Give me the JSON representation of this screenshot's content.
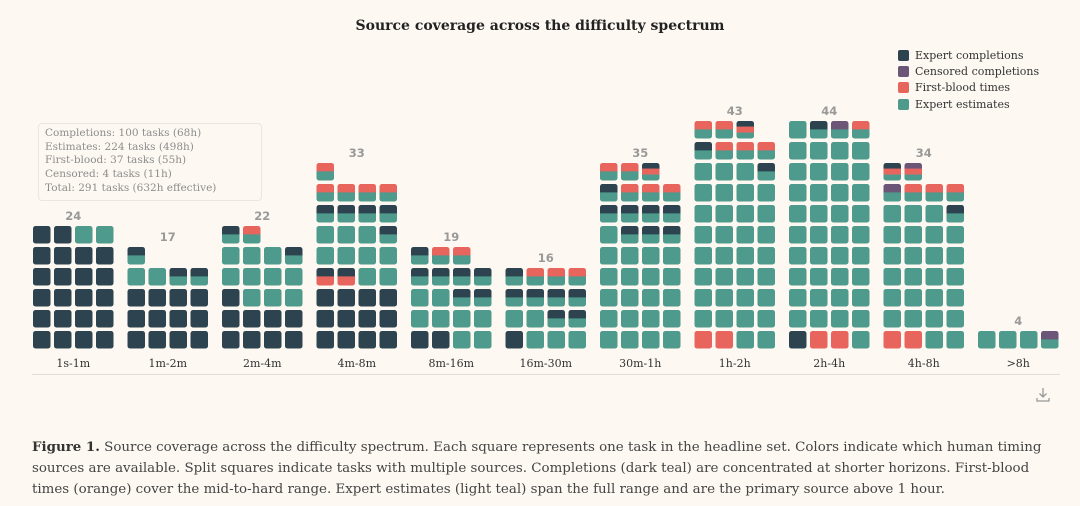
{
  "chart_data": {
    "type": "waffle",
    "title": "Source coverage across the difficulty spectrum",
    "colors": {
      "D": "#2d4450",
      "C": "#6b5677",
      "R": "#e8655e",
      "E": "#4e9a8c"
    },
    "legend": [
      {
        "key": "D",
        "label": "Expert completions"
      },
      {
        "key": "C",
        "label": "Censored completions"
      },
      {
        "key": "R",
        "label": "First-blood times"
      },
      {
        "key": "E",
        "label": "Expert estimates"
      }
    ],
    "bins": [
      {
        "label": "1s-1m",
        "count": 24,
        "rows": [
          [
            "D",
            "D",
            "D",
            "D"
          ],
          [
            "D",
            "D",
            "D",
            "D"
          ],
          [
            "D",
            "D",
            "D",
            "D"
          ],
          [
            "D",
            "D",
            "D",
            "D"
          ],
          [
            "D",
            "D",
            "D",
            "D"
          ],
          [
            "D",
            "D",
            "E",
            "E"
          ]
        ]
      },
      {
        "label": "1m-2m",
        "count": 17,
        "rows": [
          [
            "D",
            "D",
            "D",
            "D"
          ],
          [
            "D",
            "D",
            "D",
            "D"
          ],
          [
            "D",
            "D",
            "D",
            "D"
          ],
          [
            "E",
            "E",
            "DE",
            "DE"
          ],
          [
            "DE"
          ]
        ]
      },
      {
        "label": "2m-4m",
        "count": 22,
        "rows": [
          [
            "D",
            "D",
            "D",
            "D"
          ],
          [
            "D",
            "D",
            "D",
            "D"
          ],
          [
            "D",
            "E",
            "E",
            "E"
          ],
          [
            "E",
            "E",
            "E",
            "E"
          ],
          [
            "E",
            "E",
            "E",
            "DE"
          ],
          [
            "DE",
            "RE"
          ]
        ]
      },
      {
        "label": "4m-8m",
        "count": 33,
        "rows": [
          [
            "D",
            "D",
            "D",
            "D"
          ],
          [
            "D",
            "D",
            "D",
            "D"
          ],
          [
            "D",
            "D",
            "D",
            "D"
          ],
          [
            "DR",
            "DR",
            "E",
            "E"
          ],
          [
            "E",
            "E",
            "E",
            "E"
          ],
          [
            "E",
            "E",
            "E",
            "DE"
          ],
          [
            "DE",
            "DE",
            "DE",
            "DE"
          ],
          [
            "RE",
            "RE",
            "RE",
            "RE"
          ],
          [
            "RE"
          ]
        ]
      },
      {
        "label": "8m-16m",
        "count": 19,
        "rows": [
          [
            "D",
            "D",
            "E",
            "E"
          ],
          [
            "E",
            "E",
            "E",
            "E"
          ],
          [
            "E",
            "E",
            "DE",
            "DE"
          ],
          [
            "DE",
            "DE",
            "DE",
            "DE"
          ],
          [
            "DE",
            "RE",
            "RE"
          ]
        ]
      },
      {
        "label": "16m-30m",
        "count": 16,
        "rows": [
          [
            "D",
            "E",
            "E",
            "E"
          ],
          [
            "E",
            "E",
            "DE",
            "DE"
          ],
          [
            "DE",
            "DE",
            "DE",
            "DE"
          ],
          [
            "DE",
            "RE",
            "RE",
            "RE"
          ]
        ]
      },
      {
        "label": "30m-1h",
        "count": 35,
        "rows": [
          [
            "E",
            "E",
            "E",
            "E"
          ],
          [
            "E",
            "E",
            "E",
            "E"
          ],
          [
            "E",
            "E",
            "E",
            "E"
          ],
          [
            "E",
            "E",
            "E",
            "E"
          ],
          [
            "E",
            "E",
            "E",
            "E"
          ],
          [
            "E",
            "DE",
            "DE",
            "DE"
          ],
          [
            "DE",
            "DE",
            "DE",
            "DE"
          ],
          [
            "DE",
            "RE",
            "RE",
            "RE"
          ],
          [
            "RE",
            "RE",
            "DRE"
          ]
        ]
      },
      {
        "label": "1h-2h",
        "count": 43,
        "rows": [
          [
            "R",
            "R",
            "E",
            "E"
          ],
          [
            "E",
            "E",
            "E",
            "E"
          ],
          [
            "E",
            "E",
            "E",
            "E"
          ],
          [
            "E",
            "E",
            "E",
            "E"
          ],
          [
            "E",
            "E",
            "E",
            "E"
          ],
          [
            "E",
            "E",
            "E",
            "E"
          ],
          [
            "E",
            "E",
            "E",
            "E"
          ],
          [
            "E",
            "E",
            "E",
            "E"
          ],
          [
            "E",
            "E",
            "E",
            "DE"
          ],
          [
            "DE",
            "RE",
            "RE",
            "RE"
          ],
          [
            "RE",
            "RE",
            "DRE"
          ]
        ]
      },
      {
        "label": "2h-4h",
        "count": 44,
        "rows": [
          [
            "D",
            "R",
            "R",
            "E"
          ],
          [
            "E",
            "E",
            "E",
            "E"
          ],
          [
            "E",
            "E",
            "E",
            "E"
          ],
          [
            "E",
            "E",
            "E",
            "E"
          ],
          [
            "E",
            "E",
            "E",
            "E"
          ],
          [
            "E",
            "E",
            "E",
            "E"
          ],
          [
            "E",
            "E",
            "E",
            "E"
          ],
          [
            "E",
            "E",
            "E",
            "E"
          ],
          [
            "E",
            "E",
            "E",
            "E"
          ],
          [
            "E",
            "E",
            "E",
            "E"
          ],
          [
            "E",
            "DE",
            "CE",
            "RE"
          ]
        ]
      },
      {
        "label": "4h-8h",
        "count": 34,
        "rows": [
          [
            "R",
            "R",
            "E",
            "E"
          ],
          [
            "E",
            "E",
            "E",
            "E"
          ],
          [
            "E",
            "E",
            "E",
            "E"
          ],
          [
            "E",
            "E",
            "E",
            "E"
          ],
          [
            "E",
            "E",
            "E",
            "E"
          ],
          [
            "E",
            "E",
            "E",
            "E"
          ],
          [
            "E",
            "E",
            "E",
            "DE"
          ],
          [
            "CE",
            "RE",
            "RE",
            "RE"
          ],
          [
            "DRE",
            "CRE"
          ]
        ]
      },
      {
        "label": ">8h",
        "count": 4,
        "rows": [
          [
            "E",
            "E",
            "E",
            "CE"
          ]
        ]
      }
    ]
  },
  "tooltip": [
    "Completions: 100 tasks (68h)",
    "Estimates: 224 tasks (498h)",
    "First-blood: 37 tasks (55h)",
    "Censored: 4 tasks (11h)",
    "Total: 291 tasks (632h effective)"
  ],
  "download_icon": "download-icon",
  "caption": {
    "label": "Figure 1.",
    "text": " Source coverage across the difficulty spectrum. Each square represents one task in the headline set. Colors indicate which human timing sources are available. Split squares indicate tasks with multiple sources. Completions (dark teal) are concentrated at shorter horizons. First-blood times (orange) cover the mid-to-hard range. Expert estimates (light teal) span the full range and are the primary source above 1 hour."
  }
}
